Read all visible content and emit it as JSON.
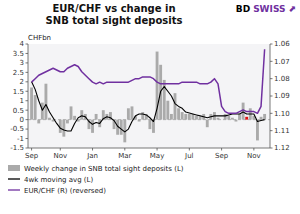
{
  "chart_data": {
    "type": "bar",
    "title": "EUR/CHF vs change in\nSNB total sight deposits",
    "ylabel": "CHFbn",
    "categories": [
      "Sep",
      null,
      null,
      null,
      null,
      null,
      null,
      null,
      "Nov",
      null,
      null,
      null,
      null,
      null,
      null,
      null,
      null,
      "Jan",
      null,
      null,
      null,
      null,
      null,
      null,
      null,
      null,
      "Mar",
      null,
      null,
      null,
      null,
      null,
      null,
      null,
      null,
      "May",
      null,
      null,
      null,
      null,
      null,
      null,
      null,
      null,
      "Jul",
      null,
      null,
      null,
      null,
      null,
      null,
      null,
      null,
      "Sep",
      null,
      null,
      null,
      null,
      null,
      null,
      null,
      null,
      "Nov",
      null,
      null,
      null
    ],
    "series": [
      {
        "name": "Weekly change in SNB total sight deposits (L)",
        "type": "bar",
        "color": "#aaaaaa",
        "colors": [
          "#aaaaaa",
          "#aaaaaa",
          "#aaaaaa",
          "#aaaaaa",
          "#aaaaaa",
          "#aaaaaa",
          "#aaaaaa",
          "#aaaaaa",
          "#aaaaaa",
          "#aaaaaa",
          "#aaaaaa",
          "#aaaaaa",
          "#aaaaaa",
          "#aaaaaa",
          "#aaaaaa",
          "#aaaaaa",
          "#aaaaaa",
          "#aaaaaa",
          "#aaaaaa",
          "#aaaaaa",
          "#aaaaaa",
          "#aaaaaa",
          "#aaaaaa",
          "#aaaaaa",
          "#aaaaaa",
          "#aaaaaa",
          "#aaaaaa",
          "#aaaaaa",
          "#aaaaaa",
          "#aaaaaa",
          "#aaaaaa",
          "#aaaaaa",
          "#aaaaaa",
          "#aaaaaa",
          "#aaaaaa",
          "#aaaaaa",
          "#aaaaaa",
          "#aaaaaa",
          "#aaaaaa",
          "#aaaaaa",
          "#aaaaaa",
          "#aaaaaa",
          "#aaaaaa",
          "#aaaaaa",
          "#aaaaaa",
          "#aaaaaa",
          "#aaaaaa",
          "#aaaaaa",
          "#aaaaaa",
          "#aaaaaa",
          "#aaaaaa",
          "#aaaaaa",
          "#aaaaaa",
          "#aaaaaa",
          "#aaaaaa",
          "#aaaaaa",
          "#aaaaaa",
          "#aaaaaa",
          "#aaaaaa",
          "#aaaaaa",
          "#dd1111",
          "#aaaaaa",
          "#aaaaaa",
          "#aaaaaa",
          "#aaaaaa",
          "#aaaaaa"
        ],
        "values": [
          1.7,
          1.3,
          -0.2,
          0.9,
          1.9,
          0.1,
          -0.1,
          0.0,
          -0.7,
          -0.9,
          -0.2,
          0.7,
          0.2,
          -0.1,
          0.5,
          0.3,
          -0.5,
          -0.7,
          0.3,
          -0.4,
          0.5,
          0.3,
          0.4,
          -0.5,
          -0.8,
          -0.8,
          -1.2,
          0.6,
          0.7,
          0.2,
          -0.1,
          0.4,
          0.3,
          -0.5,
          -0.7,
          3.6,
          2.9,
          2.1,
          1.0,
          0.3,
          1.4,
          0.6,
          0.4,
          0.3,
          0.3,
          0.3,
          0.2,
          0.15,
          0.3,
          -0.4,
          0.3,
          0.4,
          0.1,
          0.0,
          0.3,
          0.2,
          0.1,
          -0.1,
          0.3,
          0.9,
          0.15,
          0.6,
          0.2,
          -1.1,
          0.15,
          0.3
        ]
      },
      {
        "name": "4wk moving avg (L)",
        "type": "line",
        "color": "#000000",
        "values": [
          2.0,
          1.6,
          1.0,
          0.5,
          0.8,
          0.4,
          0.1,
          -0.2,
          -0.45,
          -0.55,
          -0.6,
          -0.6,
          -0.2,
          0.1,
          0.2,
          0.15,
          -0.1,
          -0.25,
          -0.15,
          -0.2,
          0.05,
          0.15,
          0.1,
          -0.05,
          -0.35,
          -0.5,
          -0.65,
          -0.5,
          -0.1,
          0.2,
          0.3,
          0.3,
          0.25,
          0.1,
          -0.1,
          0.6,
          1.5,
          1.75,
          1.5,
          1.25,
          0.85,
          0.7,
          0.6,
          0.4,
          0.35,
          0.3,
          0.25,
          0.2,
          0.15,
          0.1,
          0.15,
          0.2,
          0.2,
          0.2,
          0.2,
          0.25,
          0.3,
          0.3,
          0.3,
          0.4,
          0.3,
          0.3,
          0.3,
          -0.1,
          -0.05,
          0.0
        ]
      },
      {
        "name": "EUR/CHF (R) (reversed)",
        "type": "line",
        "color": "#7030a0",
        "axis": "y2",
        "values": [
          1.082,
          1.08,
          1.078,
          1.077,
          1.076,
          1.075,
          1.074,
          1.075,
          1.076,
          1.076,
          1.074,
          1.073,
          1.072,
          1.073,
          1.076,
          1.078,
          1.08,
          1.082,
          1.083,
          1.082,
          1.083,
          1.082,
          1.082,
          1.082,
          1.082,
          1.082,
          1.082,
          1.082,
          1.081,
          1.08,
          1.08,
          1.079,
          1.079,
          1.079,
          1.08,
          1.082,
          1.083,
          1.083,
          1.083,
          1.083,
          1.083,
          1.083,
          1.082,
          1.082,
          1.082,
          1.082,
          1.082,
          1.083,
          1.083,
          1.083,
          1.082,
          1.08,
          1.083,
          1.096,
          1.099,
          1.1,
          1.1,
          1.1,
          1.099,
          1.098,
          1.099,
          1.099,
          1.099,
          1.1,
          1.096,
          1.063
        ]
      }
    ],
    "ylim": [
      -1.5,
      4.0
    ],
    "yticks": [
      -1.5,
      -1,
      -0.5,
      0,
      0.5,
      1,
      1.5,
      2,
      2.5,
      3,
      3.5,
      4
    ],
    "y2lim": [
      1.12,
      1.06
    ],
    "y2ticks": [
      1.06,
      1.07,
      1.08,
      1.09,
      {
        "value": 1.1,
        "label": "1.10"
      },
      1.11,
      1.12
    ],
    "grid": false,
    "legend": "bottom left",
    "annotations": [
      {
        "text": "BD",
        "color": "#000000"
      },
      {
        "text": "SWISS",
        "color": "#7030a0"
      },
      {
        "text": "⬆",
        "color": "#7030a0"
      }
    ]
  }
}
